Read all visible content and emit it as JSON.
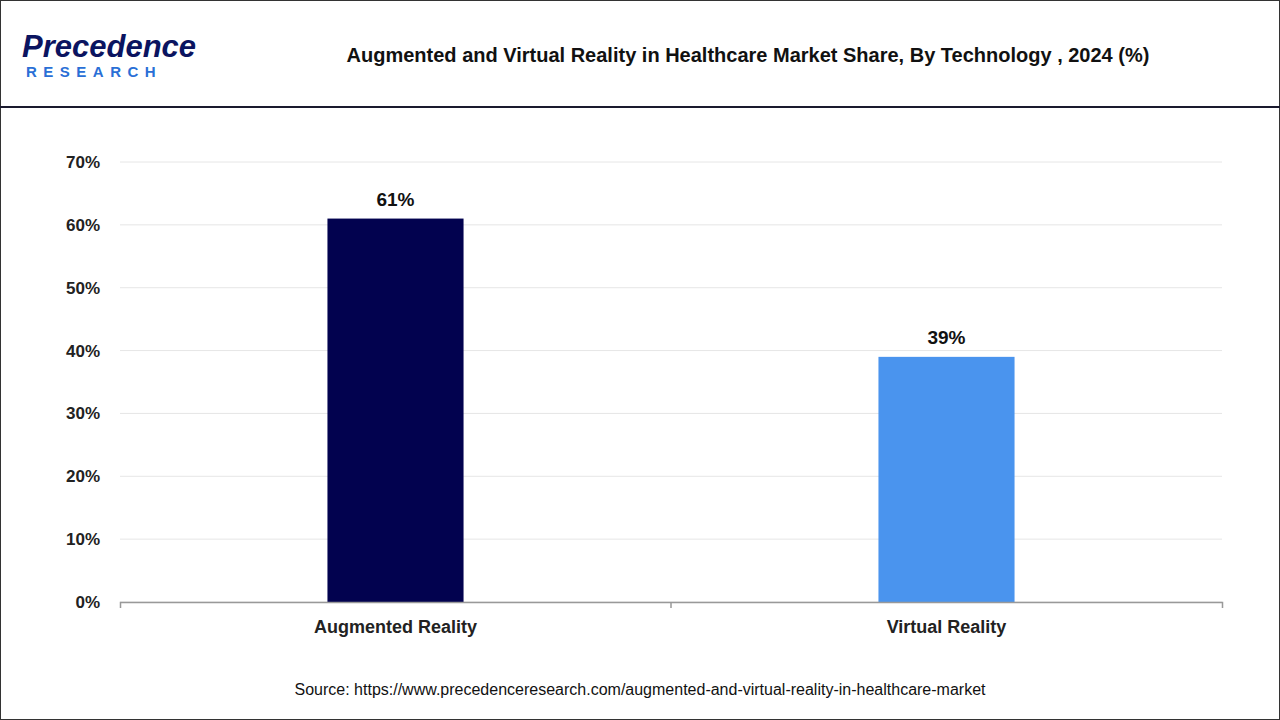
{
  "header": {
    "logo": "Precedence",
    "logo_subtitle": "RESEARCH"
  },
  "chart_data": {
    "type": "bar",
    "title": "Augmented and Virtual Reality in Healthcare Market Share, By Technology , 2024 (%)",
    "categories": [
      "Augmented Reality",
      "Virtual Reality"
    ],
    "values": [
      61,
      39
    ],
    "value_labels": [
      "61%",
      "39%"
    ],
    "colors": [
      "#02024f",
      "#4a94ee"
    ],
    "ylim": [
      0,
      70
    ],
    "yticks": [
      {
        "value": 0,
        "label": "0%"
      },
      {
        "value": 10,
        "label": "10%"
      },
      {
        "value": 20,
        "label": "20%"
      },
      {
        "value": 30,
        "label": "30%"
      },
      {
        "value": 40,
        "label": "40%"
      },
      {
        "value": 50,
        "label": "50%"
      },
      {
        "value": 60,
        "label": "60%"
      },
      {
        "value": 70,
        "label": "70%"
      }
    ],
    "grid": true,
    "data_labels": true,
    "source": "Source: https://www.precedenceresearch.com/augmented-and-virtual-reality-in-healthcare-market"
  }
}
